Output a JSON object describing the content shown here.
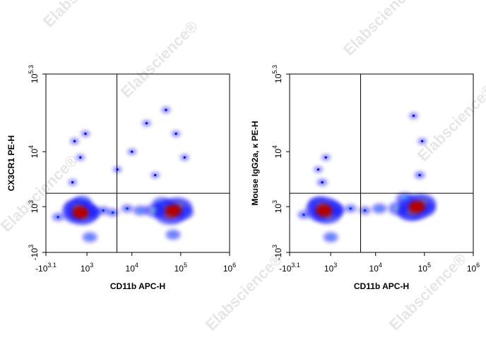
{
  "watermark": "Elabscience®",
  "chart_data": [
    {
      "type": "scatter",
      "x_label": "CD11b APC-H",
      "y_label": "CX3CR1 PE-H",
      "xlim": [
        -1259,
        1000000
      ],
      "ylim": [
        -1000,
        199526
      ],
      "xticks": [
        {
          "value": -1259,
          "label": "-10^3.1"
        },
        {
          "value": 1000,
          "label": "10^3"
        },
        {
          "value": 10000,
          "label": "10^4"
        },
        {
          "value": 100000,
          "label": "10^5"
        },
        {
          "value": 1000000,
          "label": "10^6"
        }
      ],
      "yticks": [
        {
          "value": -1000,
          "label": "-10^3"
        },
        {
          "value": 1000,
          "label": "10^3"
        },
        {
          "value": 10000,
          "label": "10^4"
        },
        {
          "value": 199526,
          "label": "10^5.3"
        }
      ],
      "quadrant_gate": {
        "x": 4900,
        "y": 1900
      },
      "x": [
        200,
        600,
        900,
        300,
        20000,
        50000,
        10000,
        5000,
        80000,
        30000,
        120000,
        -500,
        1200,
        70000,
        2500,
        4000,
        8000,
        1500,
        300,
        700,
        400,
        1000,
        15000,
        120000,
        40000,
        800,
        500,
        90000,
        50000,
        30000,
        60000,
        600,
        70000
      ],
      "y": [
        3000,
        8000,
        20000,
        15000,
        30000,
        50000,
        10000,
        5000,
        20000,
        4000,
        8000,
        500,
        -300,
        -200,
        800,
        700,
        900,
        700,
        600,
        1300,
        1000,
        800,
        800,
        700,
        1200,
        600,
        900,
        1000,
        900,
        800,
        600,
        700,
        800
      ],
      "density": [
        0.1,
        0.1,
        0.1,
        0.1,
        0.1,
        0.1,
        0.1,
        0.1,
        0.1,
        0.1,
        0.1,
        0.2,
        0.3,
        0.3,
        0.2,
        0.2,
        0.2,
        0.3,
        0.4,
        0.4,
        0.5,
        0.5,
        0.3,
        0.4,
        0.4,
        0.7,
        0.8,
        0.7,
        0.6,
        0.5,
        0.8,
        1,
        1
      ]
    },
    {
      "type": "scatter",
      "x_label": "CD11b APC-H",
      "y_label": "Mouse IgG2a, κ PE-H",
      "xlim": [
        -1259,
        1000000
      ],
      "ylim": [
        -1000,
        199526
      ],
      "xticks": [
        {
          "value": -1259,
          "label": "-10^3.1"
        },
        {
          "value": 1000,
          "label": "10^3"
        },
        {
          "value": 10000,
          "label": "10^4"
        },
        {
          "value": 100000,
          "label": "10^5"
        },
        {
          "value": 1000000,
          "label": "10^6"
        }
      ],
      "yticks": [
        {
          "value": -1000,
          "label": "-10^3"
        },
        {
          "value": 1000,
          "label": "10^3"
        },
        {
          "value": 10000,
          "label": "10^4"
        },
        {
          "value": 199526,
          "label": "10^5.3"
        }
      ],
      "quadrant_gate": {
        "x": 4900,
        "y": 1900
      },
      "x": [
        500,
        700,
        300,
        80000,
        90000,
        60000,
        -400,
        1000,
        3000,
        6000,
        12000,
        1500,
        400,
        300,
        1100,
        110000,
        40000,
        30000,
        800,
        500,
        90000,
        50000,
        60000,
        600,
        70000
      ],
      "y": [
        3000,
        8000,
        5000,
        4000,
        15000,
        40000,
        600,
        -300,
        900,
        800,
        900,
        800,
        700,
        1200,
        900,
        900,
        1500,
        900,
        600,
        1000,
        1200,
        700,
        800,
        800,
        1000
      ],
      "density": [
        0.15,
        0.1,
        0.1,
        0.15,
        0.1,
        0.1,
        0.2,
        0.3,
        0.2,
        0.2,
        0.3,
        0.3,
        0.5,
        0.4,
        0.5,
        0.4,
        0.4,
        0.5,
        0.7,
        0.8,
        0.7,
        0.6,
        0.8,
        1,
        1
      ]
    }
  ]
}
